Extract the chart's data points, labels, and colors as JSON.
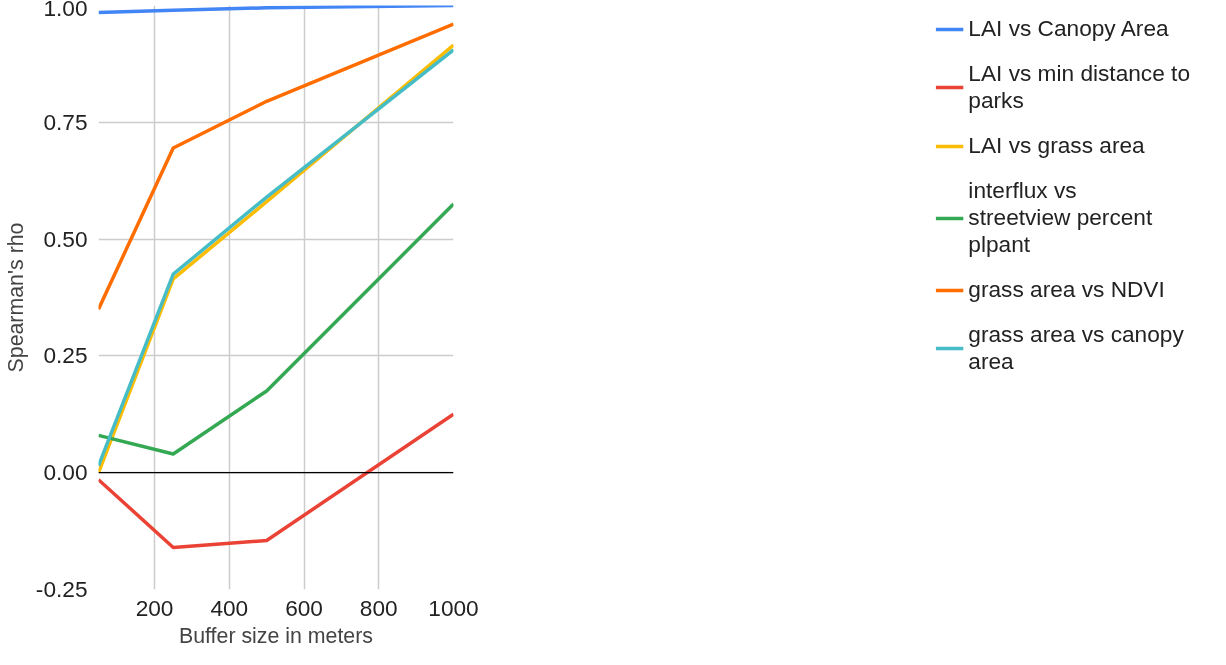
{
  "chart_data": {
    "type": "line",
    "xlabel": "Buffer size in meters",
    "ylabel": "Spearman's rho",
    "x": [
      50,
      250,
      500,
      1000
    ],
    "series": [
      {
        "name": "LAI vs Canopy Area",
        "color": "#4285f4",
        "values": [
          0.985,
          0.99,
          0.995,
          1.0
        ]
      },
      {
        "name": "LAI vs min distance to parks",
        "color": "#ea4335",
        "values": [
          -0.015,
          -0.16,
          -0.145,
          0.125
        ]
      },
      {
        "name": "LAI vs grass area",
        "color": "#fbbc04",
        "values": [
          0.0,
          0.415,
          0.58,
          0.915
        ]
      },
      {
        "name": "interflux vs streetview percent plpant",
        "color": "#34a853",
        "values": [
          0.08,
          0.04,
          0.175,
          0.575
        ]
      },
      {
        "name": "grass area vs NDVI",
        "color": "#ff6d01",
        "values": [
          0.35,
          0.695,
          0.795,
          0.96
        ]
      },
      {
        "name": "grass area vs canopy area",
        "color": "#46bdc6",
        "values": [
          0.015,
          0.425,
          0.59,
          0.905
        ]
      }
    ],
    "xlim": [
      50,
      1000
    ],
    "xticks": [
      200,
      400,
      600,
      800,
      1000
    ],
    "ylim": [
      -0.25,
      1.0
    ],
    "yticks": [
      {
        "value": -0.25,
        "label": "-0.25"
      },
      {
        "value": 0,
        "label": "0.00"
      },
      {
        "value": 0.25,
        "label": "0.25"
      },
      {
        "value": 0.5,
        "label": "0.50"
      },
      {
        "value": 0.75,
        "label": "0.75"
      },
      {
        "value": 1.0,
        "label": "1.00"
      }
    ],
    "ref_lines": [
      {
        "axis": "y",
        "value": 0,
        "color": "#000000"
      }
    ],
    "grid": true,
    "legend": "right",
    "marker": "none",
    "line_style": "solid"
  }
}
